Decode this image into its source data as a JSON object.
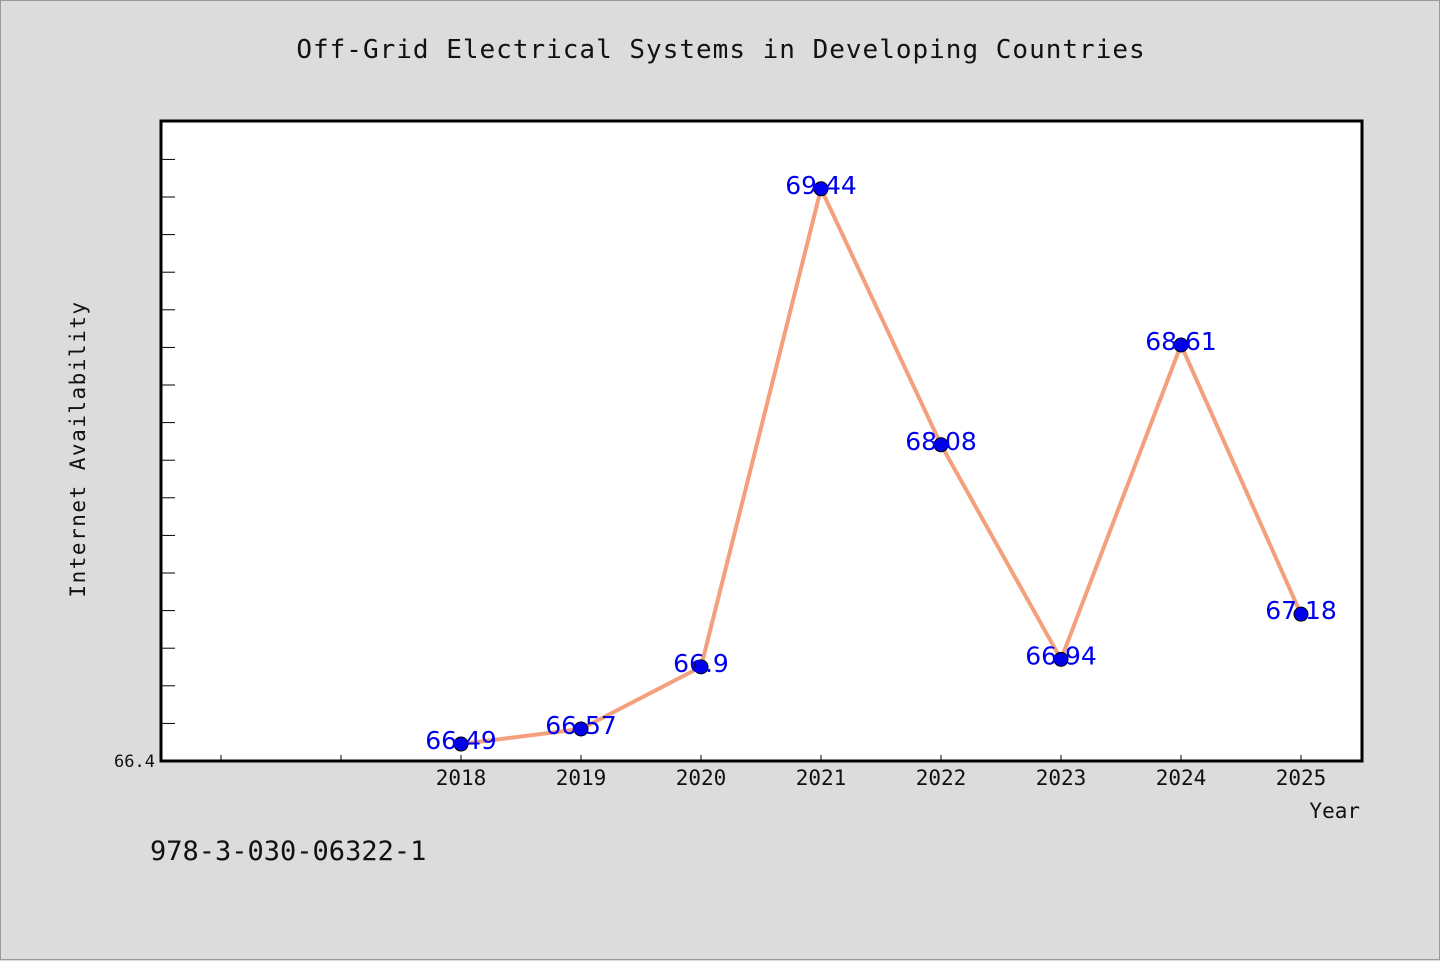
{
  "chart_data": {
    "type": "line",
    "title": "Off-Grid Electrical Systems in Developing Countries",
    "xlabel": "Year",
    "ylabel": "Internet Availability",
    "categories": [
      "2018",
      "2019",
      "2020",
      "2021",
      "2022",
      "2023",
      "2024",
      "2025"
    ],
    "values": [
      66.49,
      66.57,
      66.9,
      69.44,
      68.08,
      66.94,
      68.61,
      67.18
    ],
    "data_labels": [
      "66.49",
      "66.57",
      "66.9",
      "69.44",
      "68.08",
      "66.94",
      "68.61",
      "67.18"
    ],
    "y_tick_labels": [
      "66.4"
    ],
    "ylim": [
      66.4,
      69.8
    ],
    "grid": false,
    "line_color": "#f4a07c",
    "marker_color": "#0000ee",
    "label_color": "#0000ee",
    "plot_background": "#ffffff",
    "figure_background": "#dcdcdc"
  },
  "footer": {
    "identifier": "978-3-030-06322-1"
  }
}
